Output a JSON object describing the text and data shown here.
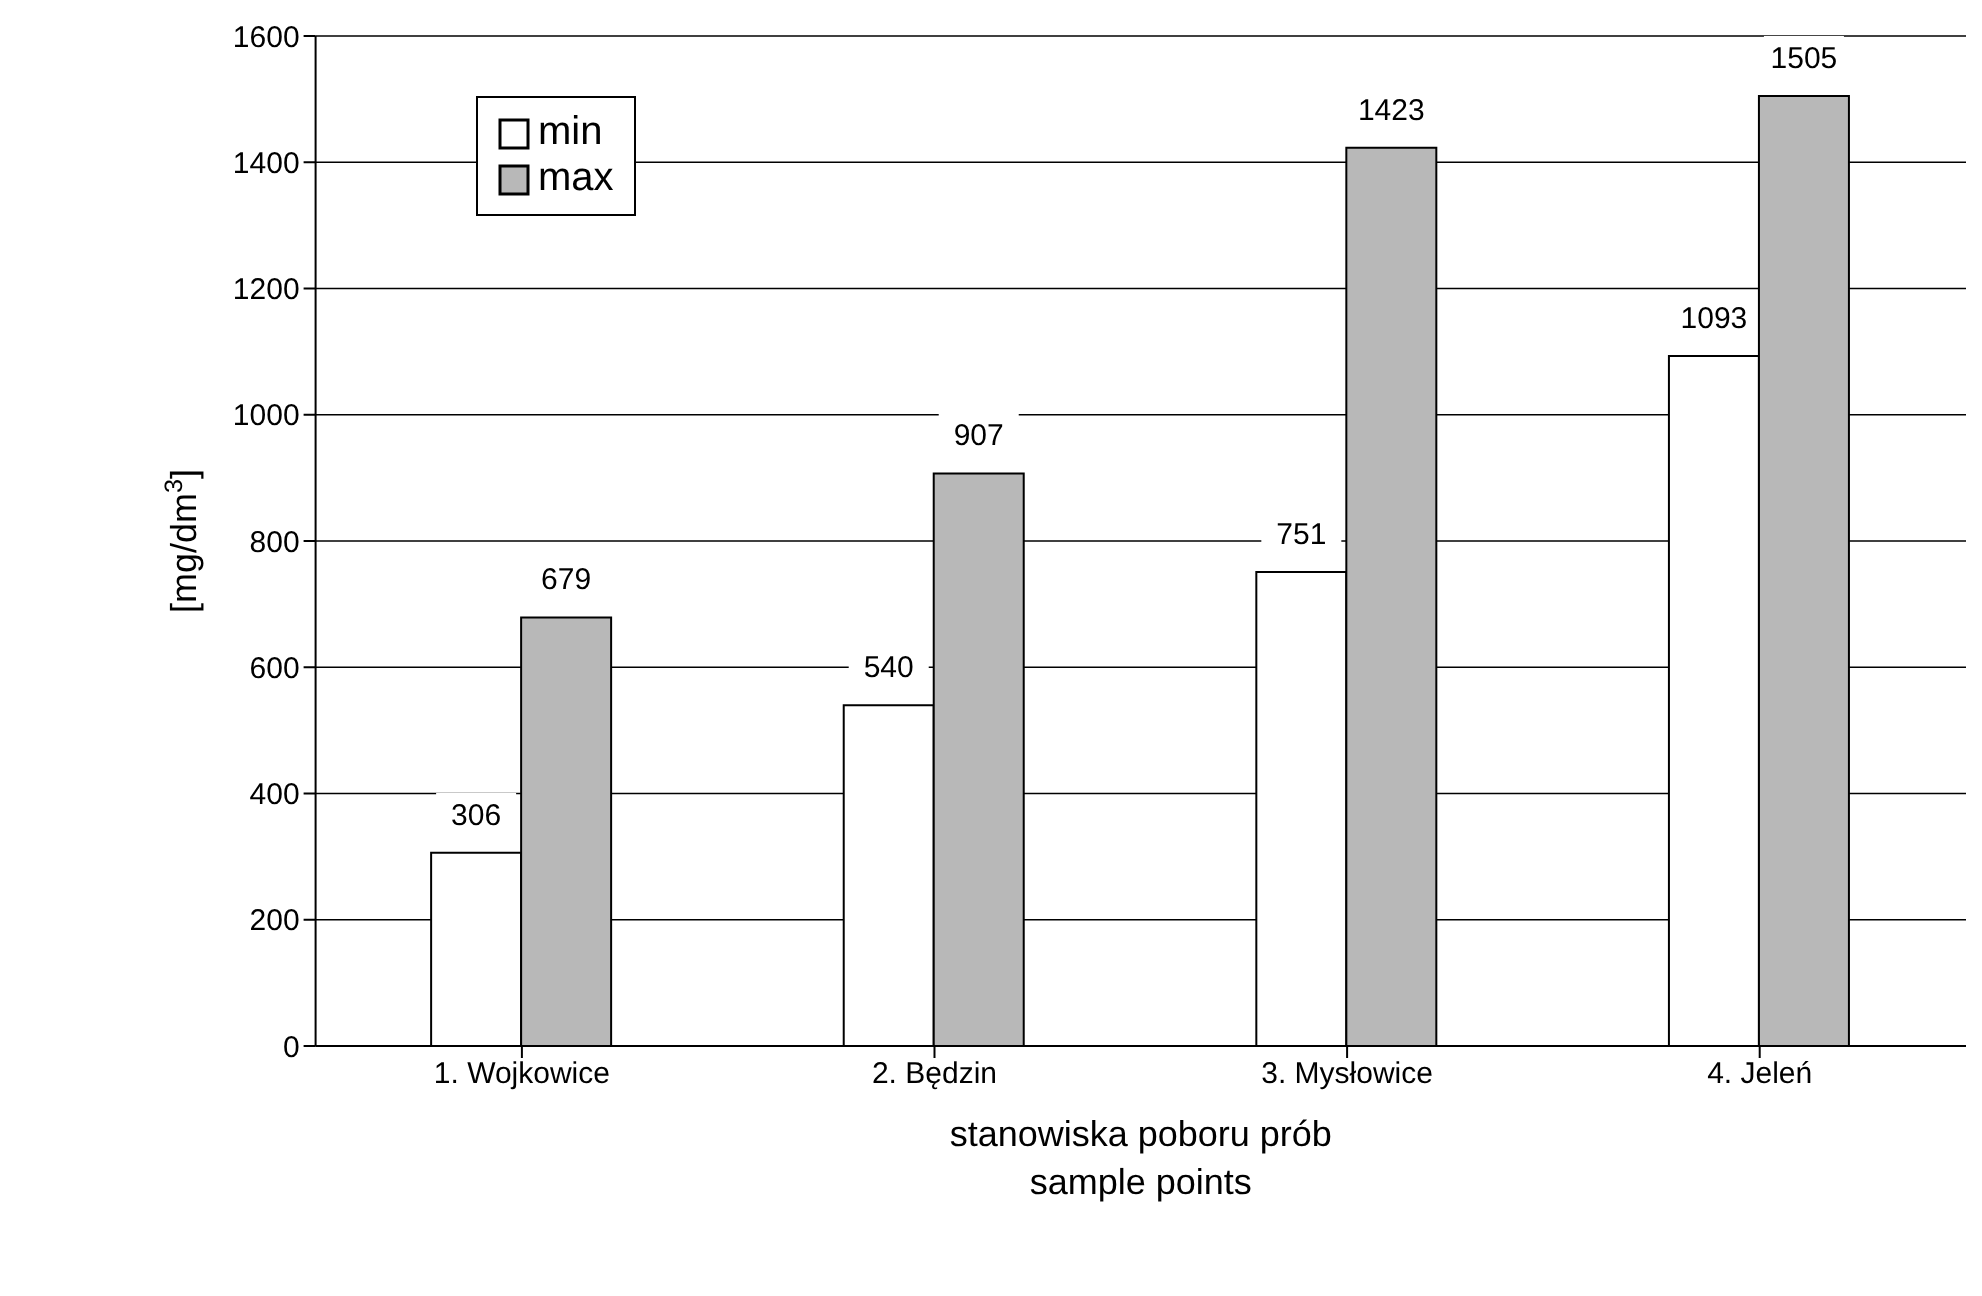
{
  "chart_data": {
    "type": "bar",
    "xlabel": "stanowiska poboru prób\nsample points",
    "ylabel": "[mg/dm$^{3}$]",
    "categories": [
      "1. Wojkowice",
      "2. Będzin",
      "3. Mysłowice",
      "4. Jeleń"
    ],
    "series": [
      {
        "name": "min",
        "color": "#ffffff",
        "values": [
          306,
          540,
          751,
          1093
        ]
      },
      {
        "name": "max",
        "color": "#b8b8b8",
        "values": [
          679,
          907,
          1423,
          1505
        ]
      }
    ],
    "ylim": [
      0,
      1600
    ],
    "yticks": [
      0,
      200,
      400,
      600,
      800,
      1000,
      1200,
      1400,
      1600
    ],
    "grid": "y",
    "legend": "top left",
    "data_labels": true
  }
}
